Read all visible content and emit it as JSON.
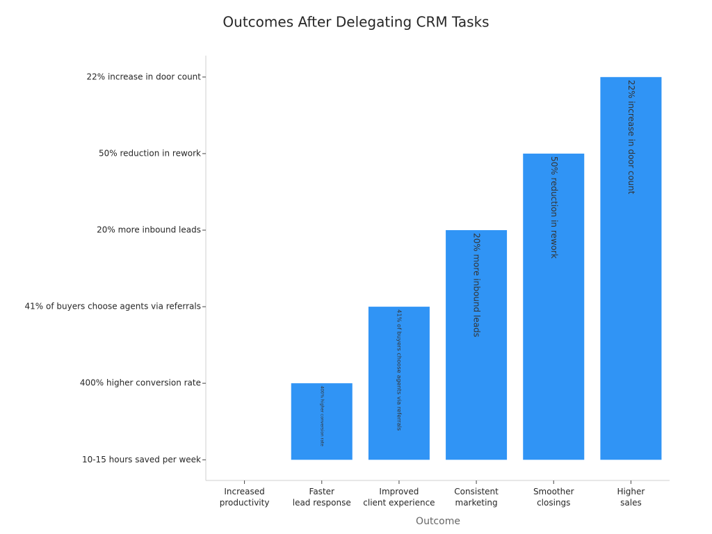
{
  "chart_data": {
    "type": "bar",
    "title": "Outcomes After Delegating CRM Tasks",
    "x_label": "Outcome",
    "categories": [
      "Increased\nproductivity",
      "Faster\nlead response",
      "Improved\nclient experience",
      "Consistent\nmarketing",
      "Smoother\nclosings",
      "Higher\nsales"
    ],
    "values": [
      0,
      1,
      2,
      3,
      4,
      5
    ],
    "value_labels": [
      null,
      "400% higher conversion rate",
      "41% of buyers choose agents via referrals",
      "20% more inbound leads",
      "50% reduction in rework",
      "22% increase in door count"
    ],
    "color": "#3094f5",
    "ylim": [
      -0.27,
      5.28
    ],
    "yticks": [
      {
        "value": 0,
        "label": "10-15 hours saved per week"
      },
      {
        "value": 1,
        "label": "400% higher conversion rate"
      },
      {
        "value": 2,
        "label": "41% of buyers choose agents via referrals"
      },
      {
        "value": 3,
        "label": "20% more inbound leads"
      },
      {
        "value": 4,
        "label": "50% reduction in rework"
      },
      {
        "value": 5,
        "label": "22% increase in door count"
      }
    ],
    "grid": false
  }
}
